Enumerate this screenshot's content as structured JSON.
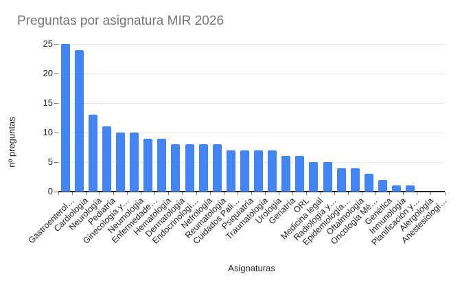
{
  "chart_data": {
    "type": "bar",
    "title": "Preguntas por asignatura MIR 2026",
    "xlabel": "Asignaturas",
    "ylabel": "nº preguntas",
    "ylim": [
      0,
      25
    ],
    "yticks": [
      0,
      5,
      10,
      15,
      20,
      25
    ],
    "grid": true,
    "legend_position": "none",
    "bar_color": "#4285f4",
    "categories": [
      "Gastroenterol…",
      "Cardiología",
      "Neurología",
      "Pediatría",
      "Ginecología y…",
      "Neumología",
      "Enfermedade…",
      "Hematología",
      "Dermatología",
      "Endocrinologí…",
      "Nefrología",
      "Reumatología",
      "Cuidados Pali…",
      "Psiquiatría",
      "Traumatología",
      "Urología",
      "Geriatría",
      "ORL",
      "Medicina legal",
      "Radiología y…",
      "Epidemiología…",
      "Oftalmología",
      "Oncología Mé…",
      "Genética",
      "Inmunología",
      "Planificación y…",
      "Alergología",
      "Anestesiologí…"
    ],
    "values": [
      25,
      24,
      13,
      11,
      10,
      10,
      9,
      9,
      8,
      8,
      8,
      8,
      7,
      7,
      7,
      7,
      6,
      6,
      5,
      5,
      4,
      4,
      3,
      2,
      1,
      1,
      0,
      0
    ]
  },
  "colors": {
    "title_text": "#757575",
    "axis_text": "#222222",
    "gridline": "#e6e6e6",
    "baseline": "#212121",
    "tick": "#757575",
    "bar": "#4285f4",
    "background": "#ffffff"
  }
}
